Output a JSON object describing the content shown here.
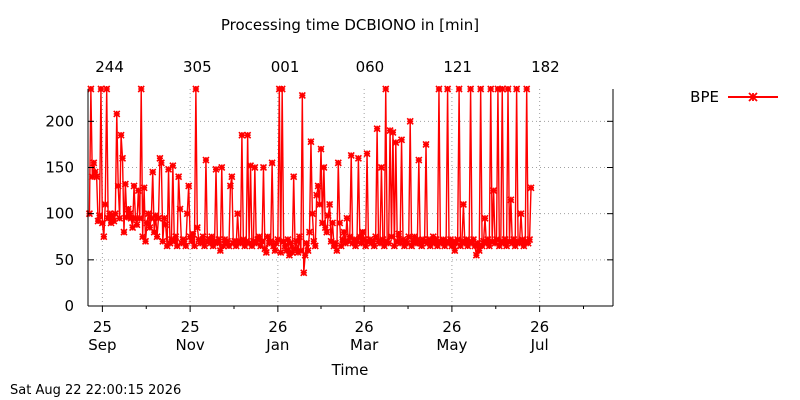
{
  "chart_data": {
    "type": "line",
    "title": "Processing time DCBIONO in [min]",
    "xlabel": "Time",
    "ylabel": "",
    "ylim": [
      0,
      235
    ],
    "yticks": [
      0,
      50,
      100,
      150,
      200
    ],
    "x_unit": "days since 2025-09-15",
    "xlim": [
      0,
      365
    ],
    "bottom_ticks": [
      {
        "x": 10,
        "label": [
          "25",
          "Sep"
        ]
      },
      {
        "x": 71,
        "label": [
          "25",
          "Nov"
        ]
      },
      {
        "x": 132,
        "label": [
          "26",
          "Jan"
        ]
      },
      {
        "x": 192,
        "label": [
          "26",
          "Mar"
        ]
      },
      {
        "x": 253,
        "label": [
          "26",
          "May"
        ]
      },
      {
        "x": 314,
        "label": [
          "26",
          "Jul"
        ]
      }
    ],
    "top_ticks": [
      {
        "x": 15,
        "label": "244"
      },
      {
        "x": 76,
        "label": "305"
      },
      {
        "x": 137,
        "label": "001"
      },
      {
        "x": 196,
        "label": "060"
      },
      {
        "x": 257,
        "label": "121"
      },
      {
        "x": 318,
        "label": "182"
      }
    ],
    "grid": true,
    "legend_position": "top-right",
    "series": [
      {
        "name": "BPE",
        "color": "#ff0000",
        "marker": "x",
        "points": [
          [
            1,
            100
          ],
          [
            2,
            235
          ],
          [
            3,
            140
          ],
          [
            4,
            155
          ],
          [
            5,
            145
          ],
          [
            6,
            140
          ],
          [
            7,
            92
          ],
          [
            8,
            98
          ],
          [
            9,
            235
          ],
          [
            10,
            90
          ],
          [
            11,
            75
          ],
          [
            12,
            110
          ],
          [
            13,
            235
          ],
          [
            14,
            95
          ],
          [
            15,
            100
          ],
          [
            16,
            90
          ],
          [
            17,
            98
          ],
          [
            18,
            92
          ],
          [
            19,
            100
          ],
          [
            20,
            208
          ],
          [
            21,
            130
          ],
          [
            22,
            95
          ],
          [
            23,
            185
          ],
          [
            24,
            160
          ],
          [
            25,
            80
          ],
          [
            26,
            132
          ],
          [
            27,
            96
          ],
          [
            28,
            105
          ],
          [
            29,
            100
          ],
          [
            30,
            95
          ],
          [
            31,
            85
          ],
          [
            32,
            130
          ],
          [
            33,
            95
          ],
          [
            34,
            88
          ],
          [
            35,
            125
          ],
          [
            36,
            95
          ],
          [
            37,
            235
          ],
          [
            38,
            75
          ],
          [
            39,
            128
          ],
          [
            40,
            70
          ],
          [
            41,
            90
          ],
          [
            42,
            100
          ],
          [
            43,
            85
          ],
          [
            44,
            95
          ],
          [
            45,
            145
          ],
          [
            46,
            80
          ],
          [
            47,
            98
          ],
          [
            48,
            75
          ],
          [
            49,
            95
          ],
          [
            50,
            160
          ],
          [
            51,
            155
          ],
          [
            52,
            70
          ],
          [
            53,
            95
          ],
          [
            54,
            88
          ],
          [
            55,
            65
          ],
          [
            56,
            148
          ],
          [
            57,
            68
          ],
          [
            58,
            72
          ],
          [
            59,
            152
          ],
          [
            60,
            70
          ],
          [
            61,
            75
          ],
          [
            62,
            65
          ],
          [
            63,
            140
          ],
          [
            64,
            105
          ],
          [
            65,
            68
          ],
          [
            66,
            72
          ],
          [
            67,
            70
          ],
          [
            68,
            65
          ],
          [
            69,
            100
          ],
          [
            70,
            130
          ],
          [
            71,
            75
          ],
          [
            72,
            70
          ],
          [
            73,
            78
          ],
          [
            74,
            65
          ],
          [
            75,
            235
          ],
          [
            76,
            85
          ],
          [
            77,
            72
          ],
          [
            78,
            68
          ],
          [
            79,
            70
          ],
          [
            80,
            75
          ],
          [
            81,
            65
          ],
          [
            82,
            158
          ],
          [
            83,
            70
          ],
          [
            84,
            72
          ],
          [
            85,
            68
          ],
          [
            86,
            75
          ],
          [
            87,
            65
          ],
          [
            88,
            70
          ],
          [
            89,
            148
          ],
          [
            90,
            68
          ],
          [
            91,
            72
          ],
          [
            92,
            60
          ],
          [
            93,
            150
          ],
          [
            94,
            65
          ],
          [
            95,
            72
          ],
          [
            96,
            68
          ],
          [
            97,
            70
          ],
          [
            98,
            65
          ],
          [
            99,
            130
          ],
          [
            100,
            140
          ],
          [
            101,
            68
          ],
          [
            102,
            70
          ],
          [
            103,
            65
          ],
          [
            104,
            100
          ],
          [
            105,
            70
          ],
          [
            106,
            68
          ],
          [
            107,
            185
          ],
          [
            108,
            72
          ],
          [
            109,
            65
          ],
          [
            110,
            70
          ],
          [
            111,
            185
          ],
          [
            112,
            68
          ],
          [
            113,
            152
          ],
          [
            114,
            65
          ],
          [
            115,
            70
          ],
          [
            116,
            150
          ],
          [
            117,
            68
          ],
          [
            118,
            72
          ],
          [
            119,
            75
          ],
          [
            120,
            65
          ],
          [
            121,
            70
          ],
          [
            122,
            150
          ],
          [
            123,
            62
          ],
          [
            124,
            58
          ],
          [
            125,
            75
          ],
          [
            126,
            68
          ],
          [
            127,
            70
          ],
          [
            128,
            155
          ],
          [
            129,
            65
          ],
          [
            130,
            60
          ],
          [
            131,
            68
          ],
          [
            132,
            72
          ],
          [
            133,
            235
          ],
          [
            134,
            58
          ],
          [
            135,
            235
          ],
          [
            136,
            70
          ],
          [
            137,
            65
          ],
          [
            138,
            60
          ],
          [
            139,
            72
          ],
          [
            140,
            55
          ],
          [
            141,
            68
          ],
          [
            142,
            58
          ],
          [
            143,
            140
          ],
          [
            144,
            62
          ],
          [
            145,
            70
          ],
          [
            146,
            58
          ],
          [
            147,
            75
          ],
          [
            148,
            60
          ],
          [
            149,
            228
          ],
          [
            150,
            36
          ],
          [
            151,
            55
          ],
          [
            152,
            68
          ],
          [
            153,
            60
          ],
          [
            154,
            80
          ],
          [
            155,
            178
          ],
          [
            156,
            100
          ],
          [
            157,
            70
          ],
          [
            158,
            65
          ],
          [
            159,
            120
          ],
          [
            160,
            130
          ],
          [
            161,
            110
          ],
          [
            162,
            170
          ],
          [
            163,
            90
          ],
          [
            164,
            150
          ],
          [
            165,
            85
          ],
          [
            166,
            80
          ],
          [
            167,
            98
          ],
          [
            168,
            110
          ],
          [
            169,
            70
          ],
          [
            170,
            90
          ],
          [
            171,
            65
          ],
          [
            172,
            68
          ],
          [
            173,
            60
          ],
          [
            174,
            155
          ],
          [
            175,
            90
          ],
          [
            176,
            65
          ],
          [
            177,
            72
          ],
          [
            178,
            80
          ],
          [
            179,
            68
          ],
          [
            180,
            95
          ],
          [
            181,
            70
          ],
          [
            182,
            75
          ],
          [
            183,
            163
          ],
          [
            184,
            68
          ],
          [
            185,
            72
          ],
          [
            186,
            65
          ],
          [
            187,
            70
          ],
          [
            188,
            160
          ],
          [
            189,
            75
          ],
          [
            190,
            68
          ],
          [
            191,
            80
          ],
          [
            192,
            72
          ],
          [
            193,
            65
          ],
          [
            194,
            165
          ],
          [
            195,
            70
          ],
          [
            196,
            72
          ],
          [
            197,
            68
          ],
          [
            198,
            70
          ],
          [
            199,
            65
          ],
          [
            200,
            75
          ],
          [
            201,
            192
          ],
          [
            202,
            70
          ],
          [
            203,
            68
          ],
          [
            204,
            150
          ],
          [
            205,
            72
          ],
          [
            206,
            65
          ],
          [
            207,
            235
          ],
          [
            208,
            70
          ],
          [
            209,
            68
          ],
          [
            210,
            190
          ],
          [
            211,
            75
          ],
          [
            212,
            188
          ],
          [
            213,
            65
          ],
          [
            214,
            177
          ],
          [
            215,
            70
          ],
          [
            216,
            78
          ],
          [
            217,
            68
          ],
          [
            218,
            180
          ],
          [
            219,
            72
          ],
          [
            220,
            65
          ],
          [
            221,
            70
          ],
          [
            222,
            68
          ],
          [
            223,
            75
          ],
          [
            224,
            200
          ],
          [
            225,
            65
          ],
          [
            226,
            70
          ],
          [
            227,
            75
          ],
          [
            228,
            68
          ],
          [
            229,
            72
          ],
          [
            230,
            158
          ],
          [
            231,
            68
          ],
          [
            232,
            65
          ],
          [
            233,
            72
          ],
          [
            234,
            70
          ],
          [
            235,
            175
          ],
          [
            236,
            68
          ],
          [
            237,
            72
          ],
          [
            238,
            65
          ],
          [
            239,
            70
          ],
          [
            240,
            75
          ],
          [
            241,
            68
          ],
          [
            242,
            72
          ],
          [
            243,
            65
          ],
          [
            244,
            235
          ],
          [
            245,
            70
          ],
          [
            246,
            68
          ],
          [
            247,
            72
          ],
          [
            248,
            65
          ],
          [
            249,
            70
          ],
          [
            250,
            235
          ],
          [
            251,
            68
          ],
          [
            252,
            72
          ],
          [
            253,
            65
          ],
          [
            254,
            70
          ],
          [
            255,
            60
          ],
          [
            256,
            68
          ],
          [
            257,
            72
          ],
          [
            258,
            235
          ],
          [
            259,
            65
          ],
          [
            260,
            70
          ],
          [
            261,
            110
          ],
          [
            262,
            68
          ],
          [
            263,
            72
          ],
          [
            264,
            65
          ],
          [
            265,
            70
          ],
          [
            266,
            235
          ],
          [
            267,
            68
          ],
          [
            268,
            72
          ],
          [
            269,
            65
          ],
          [
            270,
            55
          ],
          [
            271,
            68
          ],
          [
            272,
            60
          ],
          [
            273,
            235
          ],
          [
            274,
            65
          ],
          [
            275,
            70
          ],
          [
            276,
            95
          ],
          [
            277,
            68
          ],
          [
            278,
            72
          ],
          [
            279,
            65
          ],
          [
            280,
            235
          ],
          [
            281,
            70
          ],
          [
            282,
            125
          ],
          [
            283,
            68
          ],
          [
            284,
            72
          ],
          [
            285,
            235
          ],
          [
            286,
            65
          ],
          [
            287,
            70
          ],
          [
            288,
            235
          ],
          [
            289,
            68
          ],
          [
            290,
            72
          ],
          [
            291,
            65
          ],
          [
            292,
            235
          ],
          [
            293,
            70
          ],
          [
            294,
            115
          ],
          [
            295,
            68
          ],
          [
            296,
            72
          ],
          [
            297,
            65
          ],
          [
            298,
            235
          ],
          [
            299,
            70
          ],
          [
            300,
            68
          ],
          [
            301,
            100
          ],
          [
            302,
            72
          ],
          [
            303,
            65
          ],
          [
            304,
            70
          ],
          [
            305,
            235
          ],
          [
            306,
            68
          ],
          [
            307,
            72
          ],
          [
            308,
            128
          ]
        ]
      }
    ]
  },
  "footer": {
    "timestamp": "Sat Aug 22 22:00:15 2026"
  }
}
